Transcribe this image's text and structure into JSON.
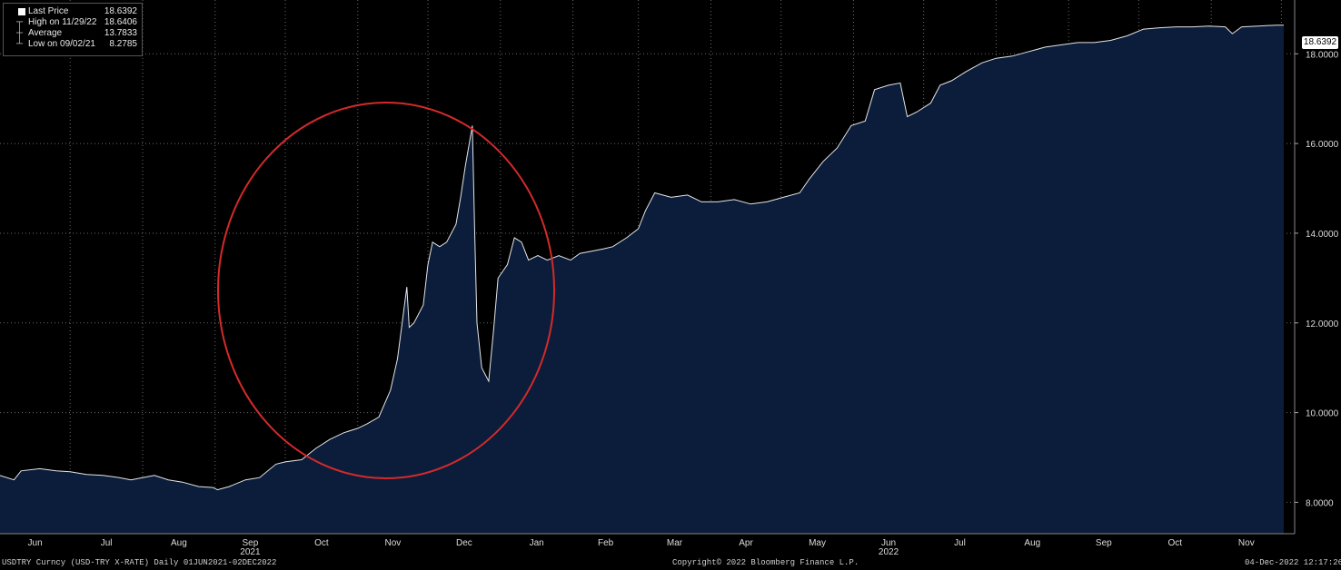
{
  "legend": {
    "items": [
      {
        "label": "Last Price",
        "value": "18.6392"
      },
      {
        "label": "High on 11/29/22",
        "value": "18.6406"
      },
      {
        "label": "Average",
        "value": "13.7833"
      },
      {
        "label": "Low on 09/02/21",
        "value": "8.2785"
      }
    ]
  },
  "last_price_tag": "18.6392",
  "footer": {
    "left": "USDTRY Curncy (USD-TRY X-RATE)  Daily 01JUN2021-02DEC2022",
    "center": "Copyright© 2022 Bloomberg Finance L.P.",
    "right": "04-Dec-2022 12:17:26"
  },
  "colors": {
    "background": "#000000",
    "area_fill": "#0b1d3a",
    "line": "#e6e6e6",
    "grid": "#6a6a6a",
    "highlight_circle": "#d42a2a"
  },
  "chart_data": {
    "type": "area",
    "title": "",
    "xlabel": "",
    "ylabel": "",
    "x_tick_labels": [
      "Jun",
      "Jul",
      "Aug",
      "Sep",
      "Oct",
      "Nov",
      "Dec",
      "Jan",
      "Feb",
      "Mar",
      "Apr",
      "May",
      "Jun",
      "Jul",
      "Aug",
      "Sep",
      "Oct",
      "Nov"
    ],
    "year_labels": [
      {
        "label": "2021",
        "month": "2021-09"
      },
      {
        "label": "2022",
        "month": "2022-06"
      }
    ],
    "y_tick_labels": [
      "8.0000",
      "10.0000",
      "12.0000",
      "14.0000",
      "16.0000",
      "18.0000"
    ],
    "y_ticks": [
      8,
      10,
      12,
      14,
      16,
      18
    ],
    "ylim": [
      7.3,
      19.2
    ],
    "xlim": [
      "2021-06-01",
      "2022-12-02"
    ],
    "grid": true,
    "legend_position": "top-left",
    "highlight": "red circle around Nov 2021 - Jan 2022",
    "series": [
      {
        "name": "Last Price",
        "points": [
          [
            "2021-06-01",
            8.6
          ],
          [
            "2021-06-07",
            8.5
          ],
          [
            "2021-06-10",
            8.7
          ],
          [
            "2021-06-18",
            8.75
          ],
          [
            "2021-06-25",
            8.7
          ],
          [
            "2021-07-01",
            8.68
          ],
          [
            "2021-07-08",
            8.62
          ],
          [
            "2021-07-15",
            8.6
          ],
          [
            "2021-07-22",
            8.55
          ],
          [
            "2021-07-27",
            8.5
          ],
          [
            "2021-08-01",
            8.55
          ],
          [
            "2021-08-06",
            8.6
          ],
          [
            "2021-08-12",
            8.5
          ],
          [
            "2021-08-18",
            8.45
          ],
          [
            "2021-08-25",
            8.35
          ],
          [
            "2021-08-31",
            8.33
          ],
          [
            "2021-09-02",
            8.28
          ],
          [
            "2021-09-07",
            8.35
          ],
          [
            "2021-09-14",
            8.5
          ],
          [
            "2021-09-20",
            8.55
          ],
          [
            "2021-09-27",
            8.85
          ],
          [
            "2021-10-01",
            8.9
          ],
          [
            "2021-10-08",
            8.95
          ],
          [
            "2021-10-14",
            9.2
          ],
          [
            "2021-10-20",
            9.4
          ],
          [
            "2021-10-26",
            9.55
          ],
          [
            "2021-11-01",
            9.65
          ],
          [
            "2021-11-05",
            9.75
          ],
          [
            "2021-11-10",
            9.9
          ],
          [
            "2021-11-15",
            10.5
          ],
          [
            "2021-11-18",
            11.2
          ],
          [
            "2021-11-22",
            12.8
          ],
          [
            "2021-11-23",
            11.9
          ],
          [
            "2021-11-25",
            12.0
          ],
          [
            "2021-11-29",
            12.4
          ],
          [
            "2021-12-01",
            13.3
          ],
          [
            "2021-12-03",
            13.8
          ],
          [
            "2021-12-06",
            13.7
          ],
          [
            "2021-12-09",
            13.8
          ],
          [
            "2021-12-13",
            14.2
          ],
          [
            "2021-12-15",
            14.8
          ],
          [
            "2021-12-17",
            15.5
          ],
          [
            "2021-12-20",
            16.4
          ],
          [
            "2021-12-21",
            14.0
          ],
          [
            "2021-12-22",
            12.0
          ],
          [
            "2021-12-24",
            11.0
          ],
          [
            "2021-12-27",
            10.7
          ],
          [
            "2021-12-29",
            11.8
          ],
          [
            "2021-12-31",
            13.0
          ],
          [
            "2022-01-04",
            13.3
          ],
          [
            "2022-01-07",
            13.9
          ],
          [
            "2022-01-10",
            13.8
          ],
          [
            "2022-01-13",
            13.4
          ],
          [
            "2022-01-17",
            13.5
          ],
          [
            "2022-01-21",
            13.4
          ],
          [
            "2022-01-26",
            13.5
          ],
          [
            "2022-01-31",
            13.4
          ],
          [
            "2022-02-04",
            13.55
          ],
          [
            "2022-02-09",
            13.6
          ],
          [
            "2022-02-14",
            13.65
          ],
          [
            "2022-02-18",
            13.7
          ],
          [
            "2022-02-24",
            13.9
          ],
          [
            "2022-03-01",
            14.1
          ],
          [
            "2022-03-04",
            14.5
          ],
          [
            "2022-03-08",
            14.9
          ],
          [
            "2022-03-15",
            14.8
          ],
          [
            "2022-03-22",
            14.85
          ],
          [
            "2022-03-28",
            14.7
          ],
          [
            "2022-04-04",
            14.7
          ],
          [
            "2022-04-11",
            14.75
          ],
          [
            "2022-04-18",
            14.65
          ],
          [
            "2022-04-25",
            14.7
          ],
          [
            "2022-05-02",
            14.8
          ],
          [
            "2022-05-09",
            14.9
          ],
          [
            "2022-05-13",
            15.2
          ],
          [
            "2022-05-19",
            15.6
          ],
          [
            "2022-05-25",
            15.9
          ],
          [
            "2022-05-31",
            16.4
          ],
          [
            "2022-06-06",
            16.5
          ],
          [
            "2022-06-10",
            17.2
          ],
          [
            "2022-06-16",
            17.3
          ],
          [
            "2022-06-21",
            17.35
          ],
          [
            "2022-06-24",
            16.6
          ],
          [
            "2022-06-28",
            16.7
          ],
          [
            "2022-07-04",
            16.9
          ],
          [
            "2022-07-08",
            17.3
          ],
          [
            "2022-07-13",
            17.4
          ],
          [
            "2022-07-19",
            17.6
          ],
          [
            "2022-07-26",
            17.8
          ],
          [
            "2022-08-01",
            17.9
          ],
          [
            "2022-08-08",
            17.95
          ],
          [
            "2022-08-15",
            18.05
          ],
          [
            "2022-08-22",
            18.15
          ],
          [
            "2022-08-29",
            18.2
          ],
          [
            "2022-09-05",
            18.25
          ],
          [
            "2022-09-12",
            18.25
          ],
          [
            "2022-09-19",
            18.3
          ],
          [
            "2022-09-26",
            18.4
          ],
          [
            "2022-10-03",
            18.55
          ],
          [
            "2022-10-10",
            18.58
          ],
          [
            "2022-10-17",
            18.6
          ],
          [
            "2022-10-24",
            18.6
          ],
          [
            "2022-10-31",
            18.62
          ],
          [
            "2022-11-07",
            18.6
          ],
          [
            "2022-11-10",
            18.45
          ],
          [
            "2022-11-14",
            18.6
          ],
          [
            "2022-11-21",
            18.62
          ],
          [
            "2022-11-29",
            18.64
          ],
          [
            "2022-12-02",
            18.64
          ]
        ]
      }
    ]
  }
}
